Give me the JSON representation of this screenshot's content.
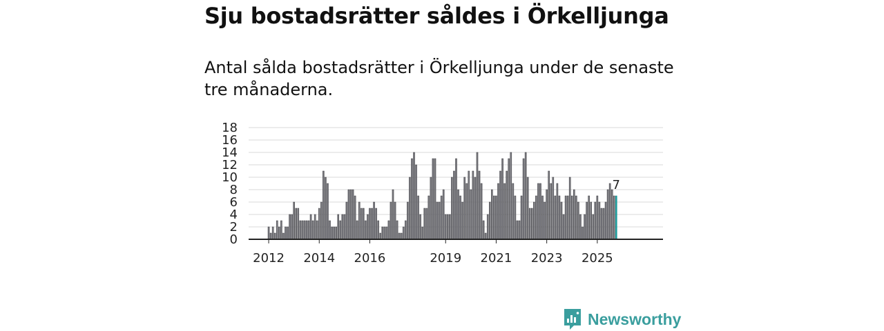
{
  "header": {
    "title": "Sju bostadsrätter såldes i Örkelljunga",
    "subtitle": "Antal sålda bostadsrätter i Örkelljunga under de senaste tre månaderna."
  },
  "brand": {
    "name": "Newsworthy",
    "icon": "newsworthy-logo-icon",
    "color": "#3a9e9e"
  },
  "colors": {
    "bar": "#7a7a80",
    "bar_border": "#3d3d40",
    "highlight": "#1fa3a3",
    "grid": "#d9d9d9",
    "axis": "#222222"
  },
  "chart_data": {
    "type": "bar",
    "title": "Sju bostadsrätter såldes i Örkelljunga",
    "xlabel": "",
    "ylabel": "",
    "ylim": [
      0,
      18
    ],
    "yticks": [
      0,
      2,
      4,
      6,
      8,
      10,
      12,
      14,
      16,
      18
    ],
    "grid": true,
    "first_month": "2012-01",
    "x_tick_labels": [
      {
        "label": "2012",
        "month_index": 0
      },
      {
        "label": "2014",
        "month_index": 24
      },
      {
        "label": "2016",
        "month_index": 48
      },
      {
        "label": "2019",
        "month_index": 84
      },
      {
        "label": "2021",
        "month_index": 108
      },
      {
        "label": "2023",
        "month_index": 132
      },
      {
        "label": "2025",
        "month_index": 156
      }
    ],
    "values": [
      2,
      1,
      2,
      1,
      3,
      2,
      3,
      1,
      2,
      2,
      4,
      4,
      6,
      5,
      5,
      3,
      3,
      3,
      3,
      3,
      4,
      3,
      4,
      3,
      5,
      6,
      11,
      10,
      9,
      3,
      2,
      2,
      2,
      4,
      3,
      4,
      4,
      6,
      8,
      8,
      8,
      7,
      3,
      6,
      5,
      5,
      3,
      4,
      5,
      5,
      6,
      5,
      3,
      1,
      2,
      2,
      2,
      3,
      6,
      8,
      6,
      3,
      1,
      1,
      2,
      3,
      6,
      10,
      13,
      14,
      12,
      7,
      4,
      2,
      5,
      5,
      7,
      10,
      13,
      13,
      6,
      6,
      7,
      8,
      4,
      4,
      4,
      10,
      11,
      13,
      8,
      7,
      6,
      10,
      9,
      11,
      8,
      11,
      10,
      14,
      11,
      9,
      3,
      1,
      4,
      6,
      8,
      7,
      7,
      9,
      11,
      13,
      9,
      11,
      13,
      14,
      9,
      7,
      3,
      3,
      7,
      13,
      14,
      10,
      5,
      5,
      6,
      7,
      9,
      9,
      7,
      6,
      8,
      11,
      9,
      10,
      7,
      9,
      7,
      6,
      4,
      7,
      7,
      10,
      7,
      8,
      7,
      6,
      4,
      2,
      4,
      6,
      7,
      6,
      4,
      6,
      7,
      6,
      5,
      5,
      6,
      8,
      9,
      8,
      7,
      7
    ],
    "highlight_last": true,
    "last_label": "7"
  }
}
